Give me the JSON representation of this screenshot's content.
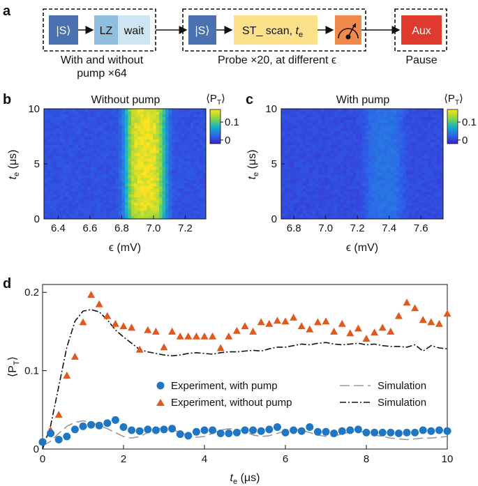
{
  "panel_labels": {
    "a": "a",
    "b": "b",
    "c": "c",
    "d": "d"
  },
  "colors": {
    "s_block": "#4a72b0",
    "lz_block": "#8fbfdd",
    "wait_block": "#cde6f2",
    "st_block": "#fde08a",
    "meas_block": "#f08a4b",
    "aux_block": "#e03a2e",
    "pump_points": "#1f77c4",
    "nopump_points": "#e05a1f",
    "sim_pump": "#999999",
    "sim_nopump": "#111111"
  },
  "sequence": {
    "s_label": "|S⟩",
    "lz_label": "LZ",
    "wait_label": "wait",
    "st_label": "ST_ scan, ",
    "st_var": "t",
    "st_sub": "e",
    "s2_label": "|S⟩",
    "aux_label": "Aux",
    "caption1_line1": "With and without",
    "caption1_line2": "pump ×64",
    "caption2": "Probe ×20, at different ϵ",
    "caption3": "Pause",
    "meter_icon": "meter-icon"
  },
  "chart_data": [
    {
      "type": "heatmap",
      "title": "Without pump",
      "xlabel": "ϵ (mV)",
      "ylabel_var": "t",
      "ylabel_sub": "e",
      "ylabel_unit": " (μs)",
      "xlim": [
        6.31,
        7.33
      ],
      "ylim": [
        0,
        10
      ],
      "x_ticks": [
        6.4,
        6.6,
        6.8,
        7.0,
        7.2
      ],
      "x_tick_labels": [
        "6.4",
        "6.6",
        "6.8",
        "7.0",
        "7.2"
      ],
      "y_ticks": [
        0,
        5,
        10
      ],
      "y_tick_labels": [
        "0",
        "5",
        "10"
      ],
      "colorbar": {
        "label_var": "⟨P",
        "label_sub": "T",
        "label_end": "⟩",
        "ticks": [
          0,
          0.1
        ],
        "tick_labels": [
          "0",
          "0.1"
        ],
        "range": [
          -0.02,
          0.17
        ]
      },
      "peak_center": 6.95,
      "peak_halfwidth": 0.125,
      "peak_value": 0.15,
      "background": 0.012
    },
    {
      "type": "heatmap",
      "title": "With pump",
      "xlabel": "ϵ (mV)",
      "ylabel_var": "t",
      "ylabel_sub": "e",
      "ylabel_unit": " (μs)",
      "xlim": [
        6.72,
        7.74
      ],
      "ylim": [
        0,
        10
      ],
      "x_ticks": [
        6.8,
        7.0,
        7.2,
        7.4,
        7.6
      ],
      "x_tick_labels": [
        "6.8",
        "7.0",
        "7.2",
        "7.4",
        "7.6"
      ],
      "y_ticks": [
        0,
        5,
        10
      ],
      "y_tick_labels": [
        "0",
        "5",
        "10"
      ],
      "colorbar": {
        "label_var": "⟨P",
        "label_sub": "T",
        "label_end": "⟩",
        "ticks": [
          0,
          0.1
        ],
        "tick_labels": [
          "0",
          "0.1"
        ],
        "range": [
          -0.02,
          0.17
        ]
      },
      "peak_center": 7.37,
      "peak_halfwidth": 0.12,
      "peak_value": 0.025,
      "background": 0.008
    },
    {
      "type": "scatter",
      "xlabel_var": "t",
      "xlabel_sub": "e",
      "xlabel_unit": " (μs)",
      "ylabel_var": "⟨P",
      "ylabel_sub": "T",
      "ylabel_end": "⟩",
      "xlim": [
        0,
        10
      ],
      "ylim": [
        0,
        0.21
      ],
      "x_ticks": [
        0,
        2,
        4,
        6,
        8,
        10
      ],
      "x_tick_labels": [
        "0",
        "2",
        "4",
        "6",
        "8",
        "10"
      ],
      "y_ticks": [
        0,
        0.1,
        0.2
      ],
      "y_tick_labels": [
        "0",
        "0.1",
        "0.2"
      ],
      "legend": {
        "pump": "Experiment, with pump",
        "nopump": "Experiment, without pump",
        "sim1": "Simulation",
        "sim2": "Simulation"
      },
      "series": [
        {
          "name": "Experiment, with pump",
          "x": [
            0.0,
            0.2,
            0.4,
            0.6,
            0.8,
            1.0,
            1.2,
            1.4,
            1.6,
            1.8,
            2.0,
            2.2,
            2.4,
            2.6,
            2.8,
            3.0,
            3.2,
            3.4,
            3.6,
            3.8,
            4.0,
            4.2,
            4.4,
            4.6,
            4.8,
            5.0,
            5.2,
            5.4,
            5.6,
            5.8,
            6.0,
            6.2,
            6.4,
            6.6,
            6.8,
            7.0,
            7.2,
            7.4,
            7.6,
            7.8,
            8.0,
            8.2,
            8.4,
            8.6,
            8.8,
            9.0,
            9.2,
            9.4,
            9.6,
            9.8,
            10.0
          ],
          "y": [
            0.009,
            0.02,
            0.012,
            0.016,
            0.025,
            0.029,
            0.031,
            0.03,
            0.033,
            0.037,
            0.028,
            0.024,
            0.023,
            0.025,
            0.024,
            0.025,
            0.026,
            0.019,
            0.017,
            0.022,
            0.024,
            0.024,
            0.02,
            0.02,
            0.021,
            0.024,
            0.024,
            0.023,
            0.025,
            0.028,
            0.021,
            0.024,
            0.023,
            0.028,
            0.022,
            0.022,
            0.02,
            0.023,
            0.024,
            0.025,
            0.021,
            0.021,
            0.021,
            0.021,
            0.02,
            0.021,
            0.021,
            0.024,
            0.023,
            0.024,
            0.023
          ]
        },
        {
          "name": "Experiment, without pump",
          "x": [
            0.0,
            0.2,
            0.4,
            0.6,
            0.8,
            1.0,
            1.2,
            1.4,
            1.6,
            1.8,
            2.0,
            2.2,
            2.4,
            2.6,
            2.8,
            3.0,
            3.2,
            3.4,
            3.6,
            3.8,
            4.0,
            4.2,
            4.4,
            4.6,
            4.8,
            5.0,
            5.2,
            5.4,
            5.6,
            5.8,
            6.0,
            6.2,
            6.4,
            6.6,
            6.8,
            7.0,
            7.2,
            7.4,
            7.6,
            7.8,
            8.0,
            8.2,
            8.4,
            8.6,
            8.8,
            9.0,
            9.2,
            9.4,
            9.6,
            9.8,
            10.0
          ],
          "y": [
            0.01,
            0.024,
            0.044,
            0.094,
            0.118,
            0.162,
            0.197,
            0.185,
            0.17,
            0.16,
            0.157,
            0.155,
            0.127,
            0.152,
            0.15,
            0.13,
            0.15,
            0.144,
            0.144,
            0.144,
            0.144,
            0.144,
            0.129,
            0.144,
            0.151,
            0.157,
            0.15,
            0.162,
            0.16,
            0.164,
            0.163,
            0.168,
            0.157,
            0.153,
            0.162,
            0.163,
            0.15,
            0.16,
            0.148,
            0.154,
            0.141,
            0.149,
            0.155,
            0.15,
            0.17,
            0.187,
            0.18,
            0.165,
            0.162,
            0.16,
            0.173
          ]
        },
        {
          "name": "Simulation (with pump)",
          "style": "dashed",
          "x": [
            0.0,
            0.2,
            0.4,
            0.6,
            0.8,
            1.0,
            1.2,
            1.4,
            1.6,
            1.8,
            2.0,
            2.2,
            2.4,
            2.6,
            2.8,
            3.0,
            3.2,
            3.4,
            3.6,
            3.8,
            4.0,
            4.2,
            4.4,
            4.6,
            4.8,
            5.0,
            5.2,
            5.4,
            5.6,
            5.8,
            6.0,
            6.2,
            6.4,
            6.6,
            6.8,
            7.0,
            7.2,
            7.4,
            7.6,
            7.8,
            8.0,
            8.2,
            8.4,
            8.6,
            8.8,
            9.0,
            9.2,
            9.4,
            9.6,
            9.8,
            10.0
          ],
          "y": [
            0.004,
            0.01,
            0.02,
            0.029,
            0.034,
            0.036,
            0.034,
            0.03,
            0.026,
            0.021,
            0.016,
            0.014,
            0.016,
            0.021,
            0.025,
            0.027,
            0.025,
            0.021,
            0.017,
            0.015,
            0.016,
            0.02,
            0.024,
            0.026,
            0.025,
            0.022,
            0.018,
            0.016,
            0.017,
            0.02,
            0.023,
            0.025,
            0.024,
            0.021,
            0.018,
            0.016,
            0.017,
            0.019,
            0.022,
            0.023,
            0.021,
            0.018,
            0.016,
            0.014,
            0.013,
            0.012,
            0.013,
            0.014,
            0.014,
            0.015,
            0.016
          ]
        },
        {
          "name": "Simulation (without pump)",
          "style": "dashdot",
          "x": [
            0.0,
            0.2,
            0.4,
            0.6,
            0.8,
            1.0,
            1.2,
            1.4,
            1.6,
            1.8,
            2.0,
            2.2,
            2.4,
            2.6,
            2.8,
            3.0,
            3.2,
            3.4,
            3.6,
            3.8,
            4.0,
            4.2,
            4.4,
            4.6,
            4.8,
            5.0,
            5.2,
            5.4,
            5.6,
            5.8,
            6.0,
            6.2,
            6.4,
            6.6,
            6.8,
            7.0,
            7.2,
            7.4,
            7.6,
            7.8,
            8.0,
            8.2,
            8.4,
            8.6,
            8.8,
            9.0,
            9.2,
            9.4,
            9.6,
            9.8,
            10.0
          ],
          "y": [
            0.0,
            0.03,
            0.08,
            0.13,
            0.163,
            0.176,
            0.178,
            0.175,
            0.165,
            0.152,
            0.143,
            0.135,
            0.127,
            0.124,
            0.122,
            0.12,
            0.119,
            0.12,
            0.122,
            0.123,
            0.122,
            0.121,
            0.123,
            0.124,
            0.124,
            0.125,
            0.126,
            0.125,
            0.128,
            0.13,
            0.13,
            0.132,
            0.134,
            0.133,
            0.135,
            0.136,
            0.134,
            0.133,
            0.134,
            0.135,
            0.133,
            0.134,
            0.132,
            0.131,
            0.131,
            0.13,
            0.133,
            0.125,
            0.132,
            0.129,
            0.128
          ]
        }
      ]
    }
  ]
}
